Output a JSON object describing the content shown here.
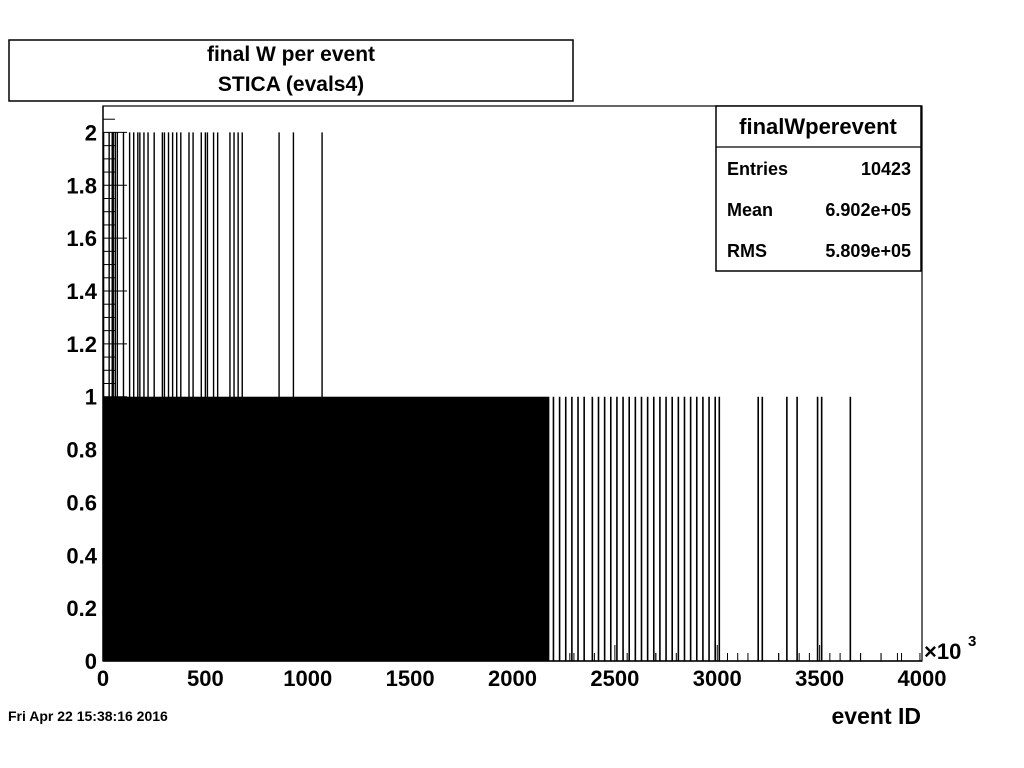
{
  "title": {
    "line1": "final W per event",
    "line2": "STICA (evals4)"
  },
  "stats": {
    "name": "finalWperevent",
    "rows": [
      {
        "label": "Entries",
        "value": "10423"
      },
      {
        "label": "Mean",
        "value": "6.902e+05"
      },
      {
        "label": "RMS",
        "value": "5.809e+05"
      }
    ]
  },
  "timestamp": "Fri Apr 22 15:38:16 2016",
  "chart_data": {
    "type": "bar",
    "xlabel": "event ID",
    "ylabel": "",
    "x_multiplier": "×10",
    "x_multiplier_exp": "3",
    "xlim": [
      0,
      4000
    ],
    "ylim": [
      0,
      2.1
    ],
    "x_ticks": [
      "0",
      "500",
      "1000",
      "1500",
      "2000",
      "2500",
      "3000",
      "3500",
      "4000"
    ],
    "y_ticks": [
      "0",
      "0.2",
      "0.4",
      "0.6",
      "0.8",
      "1",
      "1.2",
      "1.4",
      "1.6",
      "1.8",
      "2"
    ],
    "filled_region": {
      "x": [
        0,
        2180
      ],
      "value": 1
    },
    "series": [
      {
        "values_note": "",
        "spikes_value_2": [
          3,
          30,
          45,
          50,
          60,
          70,
          100,
          130,
          150,
          170,
          180,
          200,
          220,
          250,
          290,
          300,
          320,
          340,
          360,
          380,
          420,
          440,
          480,
          500,
          510,
          540,
          560,
          620,
          640,
          660,
          680,
          860,
          930,
          1070
        ],
        "spikes_value_1": [
          2200,
          2230,
          2260,
          2290,
          2320,
          2350,
          2390,
          2420,
          2450,
          2480,
          2510,
          2540,
          2570,
          2600,
          2630,
          2660,
          2690,
          2720,
          2750,
          2780,
          2810,
          2840,
          2870,
          2900,
          2930,
          2960,
          2990,
          3010,
          3200,
          3220,
          3340,
          3390,
          3490,
          3510,
          3650
        ],
        "small_ticks": [
          2280,
          2420,
          2560,
          2700,
          3050,
          3150,
          3300,
          3450,
          3550,
          3700,
          3800,
          3880,
          3990
        ]
      }
    ]
  }
}
